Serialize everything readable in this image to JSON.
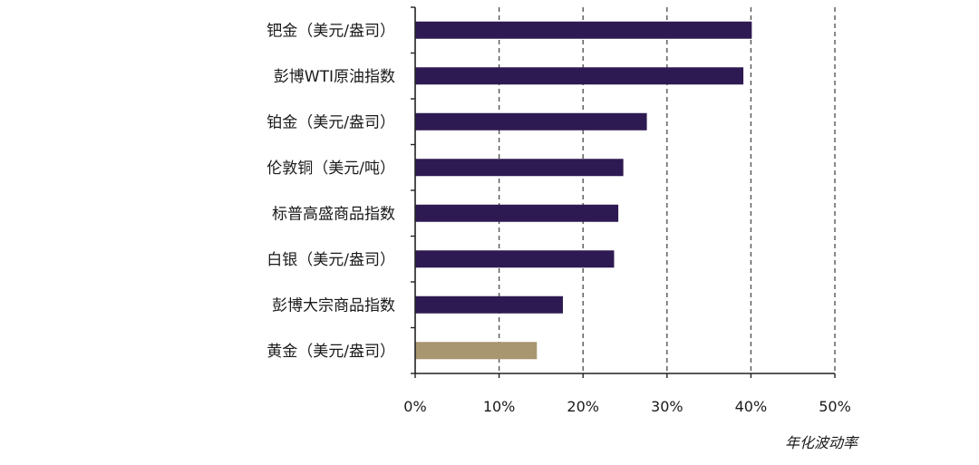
{
  "chart_data": {
    "type": "bar",
    "orientation": "horizontal",
    "categories": [
      "钯金（美元/盎司）",
      "彭博WTI原油指数",
      "铂金（美元/盎司）",
      "伦敦铜（美元/吨）",
      "标普高盛商品指数",
      "白银（美元/盎司）",
      "彭博大宗商品指数",
      "黄金（美元/盎司）"
    ],
    "values": [
      40.1,
      39.1,
      27.6,
      24.8,
      24.2,
      23.7,
      17.6,
      14.5
    ],
    "bar_colors": [
      "#2e1a52",
      "#2e1a52",
      "#2e1a52",
      "#2e1a52",
      "#2e1a52",
      "#2e1a52",
      "#2e1a52",
      "#a89670"
    ],
    "xlabel": "年化波动率",
    "xlim": [
      0,
      50
    ],
    "x_ticks": [
      "0%",
      "10%",
      "20%",
      "30%",
      "40%",
      "50%"
    ],
    "x_tick_values": [
      0,
      10,
      20,
      30,
      40,
      50
    ],
    "grid": "vertical dashed",
    "legend": "none"
  },
  "colors": {
    "primary_bar": "#2e1a52",
    "highlight_bar": "#a89670",
    "axis": "#222222",
    "grid": "#555555"
  }
}
